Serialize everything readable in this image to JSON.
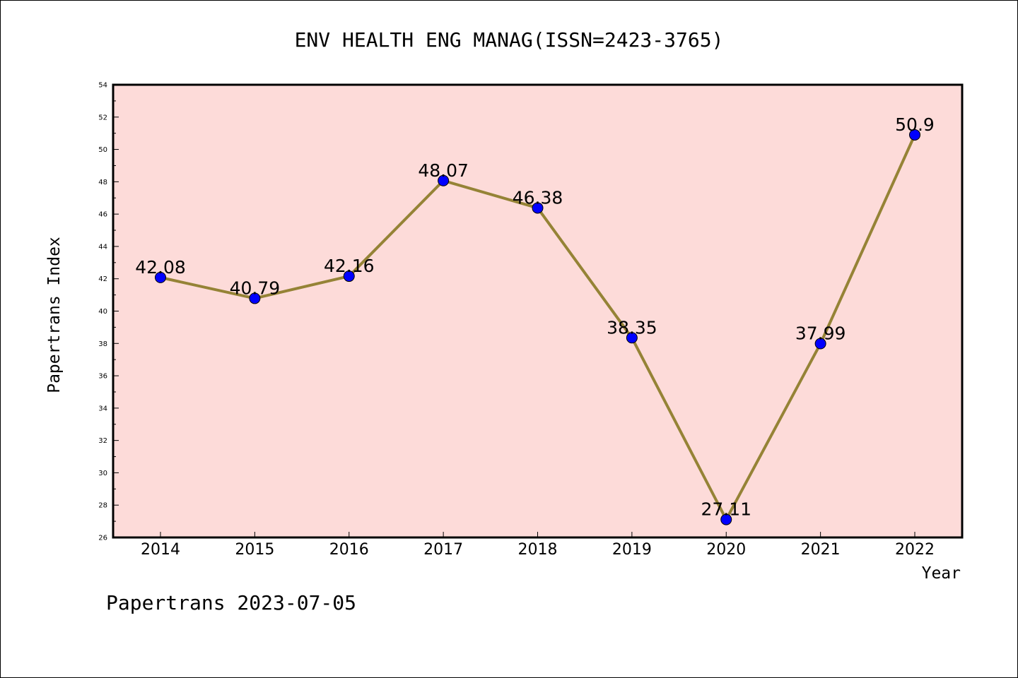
{
  "chart_data": {
    "type": "line",
    "title": "ENV HEALTH ENG MANAG(ISSN=2423-3765)",
    "xlabel": "Year",
    "ylabel": "Papertrans Index",
    "categories": [
      "2014",
      "2015",
      "2016",
      "2017",
      "2018",
      "2019",
      "2020",
      "2021",
      "2022"
    ],
    "values": [
      42.08,
      40.79,
      42.16,
      48.07,
      46.38,
      38.35,
      27.11,
      37.99,
      50.9
    ],
    "data_labels": [
      "42.08",
      "40.79",
      "42.16",
      "48.07",
      "46.38",
      "38.35",
      "27.11",
      "37.99",
      "50.9"
    ],
    "ylim": [
      26,
      54
    ],
    "y_ticks": [
      26,
      28,
      30,
      32,
      34,
      36,
      38,
      40,
      42,
      44,
      46,
      48,
      50,
      52,
      54
    ],
    "grid": false,
    "legend": "none"
  },
  "colors": {
    "plot_background": "#fddbd9",
    "line": "#958336",
    "marker": "#0000ff"
  },
  "footer": {
    "text": "Papertrans 2023-07-05"
  }
}
